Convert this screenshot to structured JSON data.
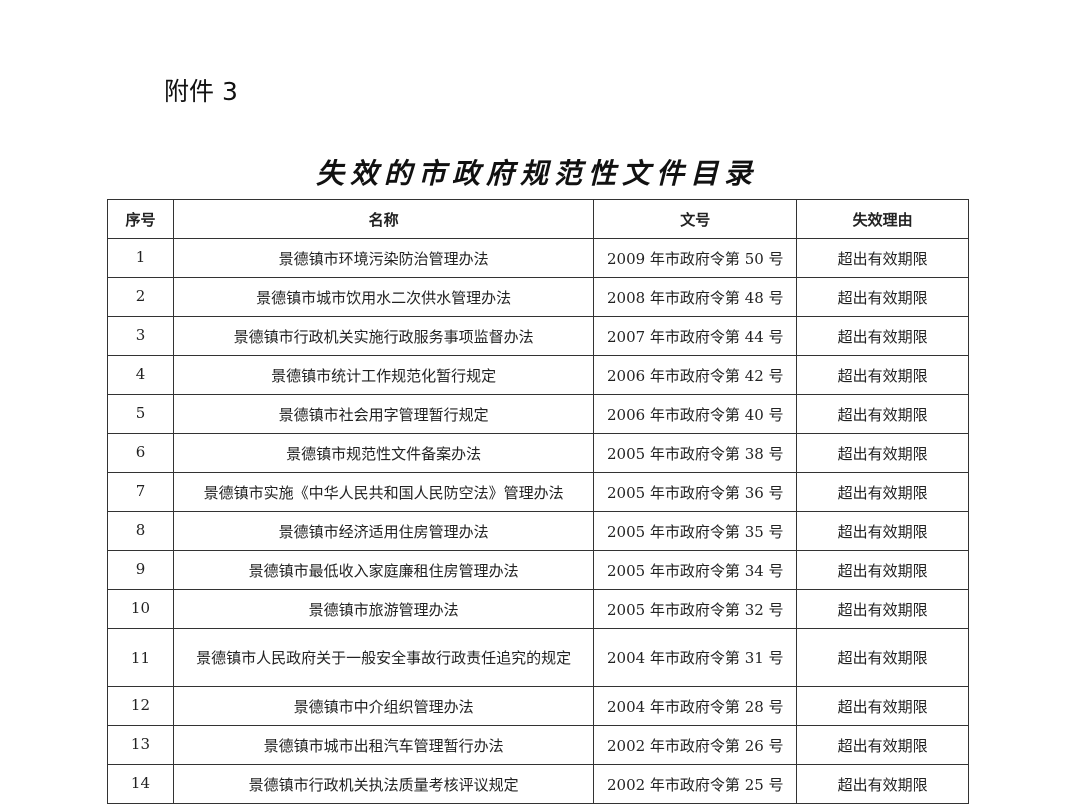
{
  "attachment_label": "附件 3",
  "title": "失效的市政府规范性文件目录",
  "table": {
    "headers": [
      "序号",
      "名称",
      "文号",
      "失效理由"
    ],
    "rows": [
      {
        "seq": "1",
        "name": "景德镇市环境污染防治管理办法",
        "doc_no": "2009 年市政府令第 50 号",
        "reason": "超出有效期限"
      },
      {
        "seq": "2",
        "name": "景德镇市城市饮用水二次供水管理办法",
        "doc_no": "2008 年市政府令第 48 号",
        "reason": "超出有效期限"
      },
      {
        "seq": "3",
        "name": "景德镇市行政机关实施行政服务事项监督办法",
        "doc_no": "2007 年市政府令第 44 号",
        "reason": "超出有效期限"
      },
      {
        "seq": "4",
        "name": "景德镇市统计工作规范化暂行规定",
        "doc_no": "2006 年市政府令第 42 号",
        "reason": "超出有效期限"
      },
      {
        "seq": "5",
        "name": "景德镇市社会用字管理暂行规定",
        "doc_no": "2006 年市政府令第 40 号",
        "reason": "超出有效期限"
      },
      {
        "seq": "6",
        "name": "景德镇市规范性文件备案办法",
        "doc_no": "2005 年市政府令第 38 号",
        "reason": "超出有效期限"
      },
      {
        "seq": "7",
        "name": "景德镇市实施《中华人民共和国人民防空法》管理办法",
        "doc_no": "2005 年市政府令第 36 号",
        "reason": "超出有效期限"
      },
      {
        "seq": "8",
        "name": "景德镇市经济适用住房管理办法",
        "doc_no": "2005 年市政府令第 35 号",
        "reason": "超出有效期限"
      },
      {
        "seq": "9",
        "name": "景德镇市最低收入家庭廉租住房管理办法",
        "doc_no": "2005 年市政府令第 34 号",
        "reason": "超出有效期限"
      },
      {
        "seq": "10",
        "name": "景德镇市旅游管理办法",
        "doc_no": "2005 年市政府令第 32 号",
        "reason": "超出有效期限"
      },
      {
        "seq": "11",
        "name": "景德镇市人民政府关于一般安全事故行政责任追究的规定",
        "doc_no": "2004 年市政府令第 31 号",
        "reason": "超出有效期限"
      },
      {
        "seq": "12",
        "name": "景德镇市中介组织管理办法",
        "doc_no": "2004 年市政府令第 28 号",
        "reason": "超出有效期限"
      },
      {
        "seq": "13",
        "name": "景德镇市城市出租汽车管理暂行办法",
        "doc_no": "2002 年市政府令第 26 号",
        "reason": "超出有效期限"
      },
      {
        "seq": "14",
        "name": "景德镇市行政机关执法质量考核评议规定",
        "doc_no": "2002 年市政府令第 25 号",
        "reason": "超出有效期限"
      }
    ]
  }
}
